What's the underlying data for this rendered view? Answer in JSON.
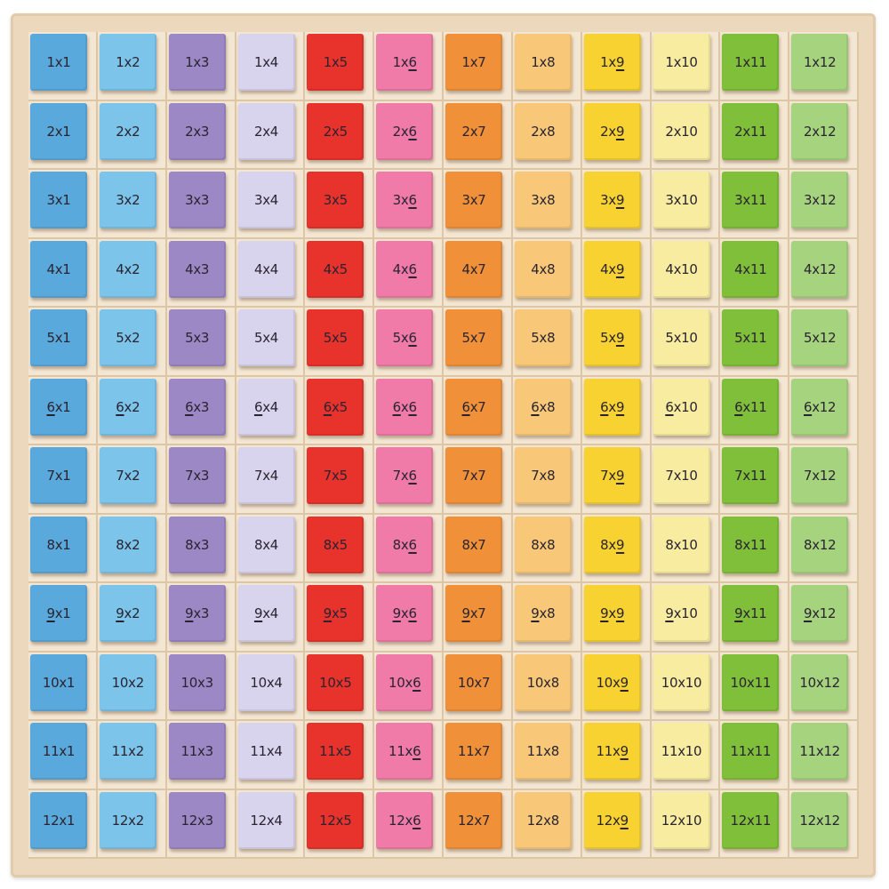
{
  "board": {
    "column_colors": [
      "#5aa9dc",
      "#7cc4ea",
      "#9b88c4",
      "#d9d4ee",
      "#e8322c",
      "#f07aa8",
      "#f0913a",
      "#f8c878",
      "#f7d230",
      "#f8eca0",
      "#7fbf3a",
      "#a6d47e"
    ],
    "wood_color": "#ecd8bd",
    "underlined_digits": [
      "6",
      "9"
    ],
    "tiles": [
      [
        "1x1",
        "1x2",
        "1x3",
        "1x4",
        "1x5",
        "1x6",
        "1x7",
        "1x8",
        "1x9",
        "1x10",
        "1x11",
        "1x12"
      ],
      [
        "2x1",
        "2x2",
        "2x3",
        "2x4",
        "2x5",
        "2x6",
        "2x7",
        "2x8",
        "2x9",
        "2x10",
        "2x11",
        "2x12"
      ],
      [
        "3x1",
        "3x2",
        "3x3",
        "3x4",
        "3x5",
        "3x6",
        "3x7",
        "3x8",
        "3x9",
        "3x10",
        "3x11",
        "3x12"
      ],
      [
        "4x1",
        "4x2",
        "4x3",
        "4x4",
        "4x5",
        "4x6",
        "4x7",
        "4x8",
        "4x9",
        "4x10",
        "4x11",
        "4x12"
      ],
      [
        "5x1",
        "5x2",
        "5x3",
        "5x4",
        "5x5",
        "5x6",
        "5x7",
        "5x8",
        "5x9",
        "5x10",
        "5x11",
        "5x12"
      ],
      [
        "6x1",
        "6x2",
        "6x3",
        "6x4",
        "6x5",
        "6x6",
        "6x7",
        "6x8",
        "6x9",
        "6x10",
        "6x11",
        "6x12"
      ],
      [
        "7x1",
        "7x2",
        "7x3",
        "7x4",
        "7x5",
        "7x6",
        "7x7",
        "7x8",
        "7x9",
        "7x10",
        "7x11",
        "7x12"
      ],
      [
        "8x1",
        "8x2",
        "8x3",
        "8x4",
        "8x5",
        "8x6",
        "8x7",
        "8x8",
        "8x9",
        "8x10",
        "8x11",
        "8x12"
      ],
      [
        "9x1",
        "9x2",
        "9x3",
        "9x4",
        "9x5",
        "9x6",
        "9x7",
        "9x8",
        "9x9",
        "9x10",
        "9x11",
        "9x12"
      ],
      [
        "10x1",
        "10x2",
        "10x3",
        "10x4",
        "10x5",
        "10x6",
        "10x7",
        "10x8",
        "10x9",
        "10x10",
        "10x11",
        "10x12"
      ],
      [
        "11x1",
        "11x2",
        "11x3",
        "11x4",
        "11x5",
        "11x6",
        "11x7",
        "11x8",
        "11x9",
        "11x10",
        "11x11",
        "11x12"
      ],
      [
        "12x1",
        "12x2",
        "12x3",
        "12x4",
        "12x5",
        "12x6",
        "12x7",
        "12x8",
        "12x9",
        "12x10",
        "12x11",
        "12x12"
      ]
    ]
  }
}
